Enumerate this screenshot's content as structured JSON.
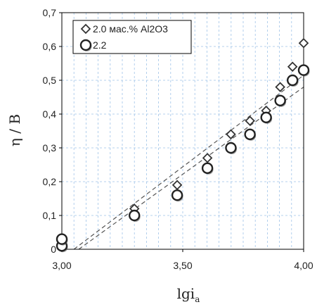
{
  "chart_data": {
    "type": "scatter",
    "xlabel": "lgi",
    "xlabel_sub": "a",
    "ylabel": "η / B",
    "xlim": [
      3.0,
      4.0
    ],
    "ylim": [
      0,
      0.7
    ],
    "x_ticks": [
      3.0,
      3.5,
      4.0
    ],
    "x_tick_labels": [
      "3,00",
      "3,50",
      "4,00"
    ],
    "y_ticks": [
      0,
      0.1,
      0.2,
      0.3,
      0.4,
      0.5,
      0.6,
      0.7
    ],
    "y_tick_labels": [
      "0",
      "0,1",
      "0,2",
      "0,3",
      "0,4",
      "0,5",
      "0,6",
      "0,7"
    ],
    "grid": true,
    "legend_position": "top-left",
    "series": [
      {
        "name": "2.0 мас.% Al2O3",
        "marker": "diamond",
        "x": [
          3.0,
          3.3,
          3.477,
          3.602,
          3.699,
          3.778,
          3.845,
          3.903,
          3.954,
          4.0
        ],
        "y": [
          0.01,
          0.12,
          0.19,
          0.27,
          0.34,
          0.38,
          0.41,
          0.48,
          0.54,
          0.61
        ]
      },
      {
        "name": "2.2",
        "marker": "circle",
        "x": [
          3.0,
          3.0,
          3.3,
          3.477,
          3.602,
          3.699,
          3.778,
          3.845,
          3.903,
          3.954,
          4.0
        ],
        "y": [
          0.01,
          0.03,
          0.1,
          0.16,
          0.24,
          0.3,
          0.34,
          0.39,
          0.44,
          0.5,
          0.53
        ]
      }
    ],
    "trendlines": [
      {
        "x": [
          3.05,
          4.0
        ],
        "y": [
          0.0,
          0.515
        ]
      },
      {
        "x": [
          3.07,
          4.0
        ],
        "y": [
          0.0,
          0.48
        ]
      }
    ]
  }
}
